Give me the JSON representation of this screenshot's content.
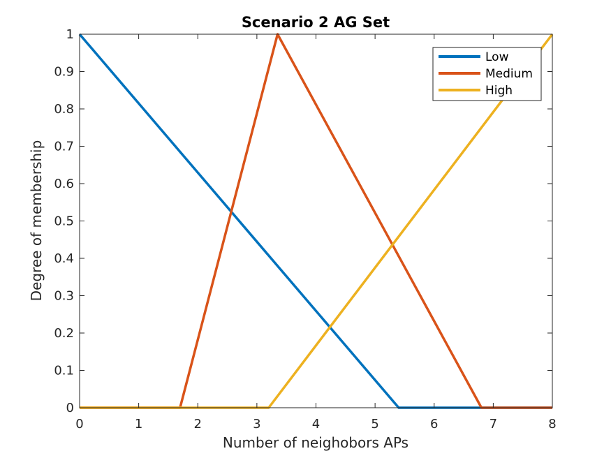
{
  "chart_data": {
    "type": "line",
    "title": "Scenario 2 AG Set",
    "xlabel": "Number of neighobors APs",
    "ylabel": "Degree of membership",
    "xlim": [
      0,
      8
    ],
    "ylim": [
      0,
      1
    ],
    "x_ticks": [
      "0",
      "1",
      "2",
      "3",
      "4",
      "5",
      "6",
      "7",
      "8"
    ],
    "y_ticks": [
      "0",
      "0.1",
      "0.2",
      "0.3",
      "0.4",
      "0.5",
      "0.6",
      "0.7",
      "0.8",
      "0.9",
      "1"
    ],
    "grid": false,
    "legend_position": "top-right",
    "series": [
      {
        "name": "Low",
        "color": "#0072BD",
        "points": [
          [
            0,
            1
          ],
          [
            5.4,
            0
          ],
          [
            8,
            0
          ]
        ]
      },
      {
        "name": "Medium",
        "color": "#D95319",
        "points": [
          [
            0,
            0
          ],
          [
            1.7,
            0
          ],
          [
            3.35,
            1
          ],
          [
            6.8,
            0
          ],
          [
            8,
            0
          ]
        ]
      },
      {
        "name": "High",
        "color": "#EDB120",
        "points": [
          [
            0,
            0
          ],
          [
            3.2,
            0
          ],
          [
            8,
            1
          ]
        ]
      }
    ]
  }
}
